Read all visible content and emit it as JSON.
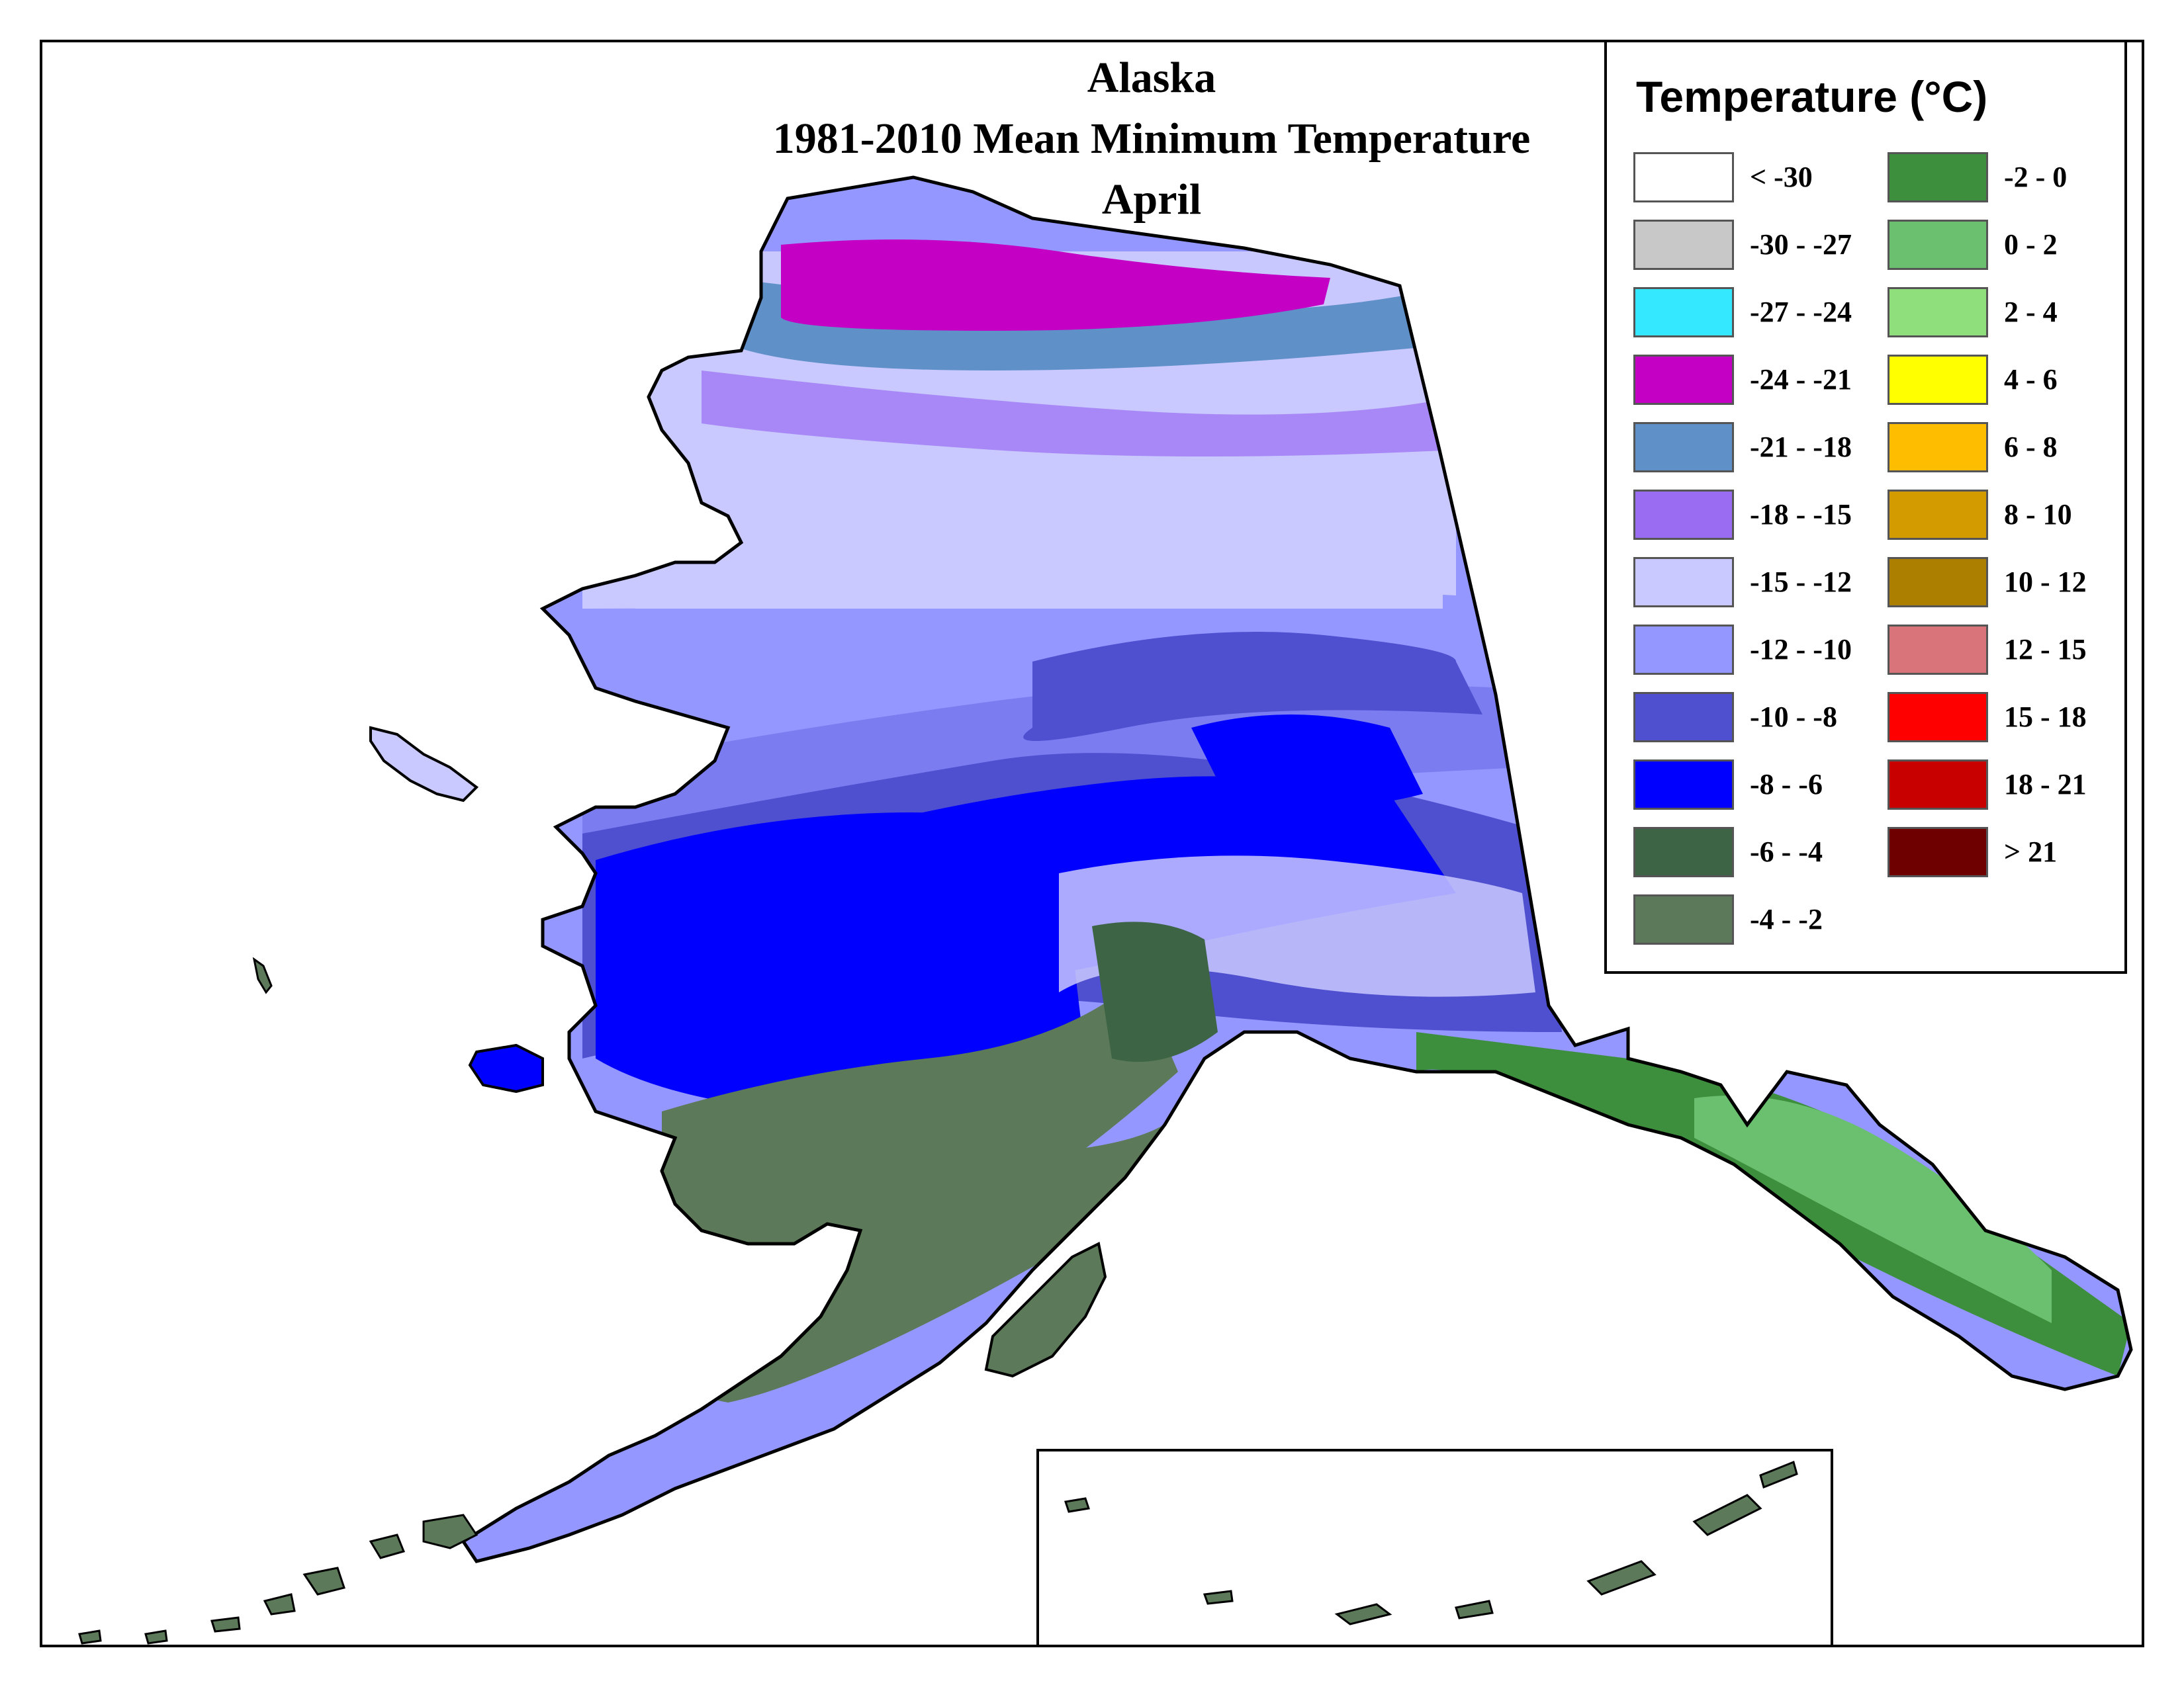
{
  "title": {
    "line1": "Alaska",
    "line2": "1981-2010 Mean Minimum Temperature",
    "line3": "April"
  },
  "legend": {
    "title": "Temperature (°C)",
    "column1": [
      {
        "label": "< -30",
        "color": "#ffffff"
      },
      {
        "label": "-30 - -27",
        "color": "#c8c8c8"
      },
      {
        "label": "-27 - -24",
        "color": "#33e8ff"
      },
      {
        "label": "-24 - -21",
        "color": "#c400c4"
      },
      {
        "label": "-21 - -18",
        "color": "#5f91c8"
      },
      {
        "label": "-18 - -15",
        "color": "#9a6cf2"
      },
      {
        "label": "-15 - -12",
        "color": "#c9c8ff"
      },
      {
        "label": "-12 - -10",
        "color": "#9497ff"
      },
      {
        "label": "-10 - -8",
        "color": "#4f50cf"
      },
      {
        "label": "-8 - -6",
        "color": "#0000ff"
      },
      {
        "label": "-6 - -4",
        "color": "#3c6445"
      },
      {
        "label": "-4 - -2",
        "color": "#5c7a59"
      }
    ],
    "column2": [
      {
        "label": "-2 - 0",
        "color": "#3e8f3d"
      },
      {
        "label": "0 - 2",
        "color": "#6ac06e"
      },
      {
        "label": "2 - 4",
        "color": "#8fe07c"
      },
      {
        "label": "4 - 6",
        "color": "#ffff00"
      },
      {
        "label": "6 - 8",
        "color": "#ffbd00"
      },
      {
        "label": "8 - 10",
        "color": "#d49b00"
      },
      {
        "label": "10 - 12",
        "color": "#ad7f00"
      },
      {
        "label": "12 - 15",
        "color": "#d9747a"
      },
      {
        "label": "15 - 18",
        "color": "#ff0000"
      },
      {
        "label": "18 - 21",
        "color": "#c80000"
      },
      {
        "label": "> 21",
        "color": "#6e0000"
      }
    ]
  }
}
